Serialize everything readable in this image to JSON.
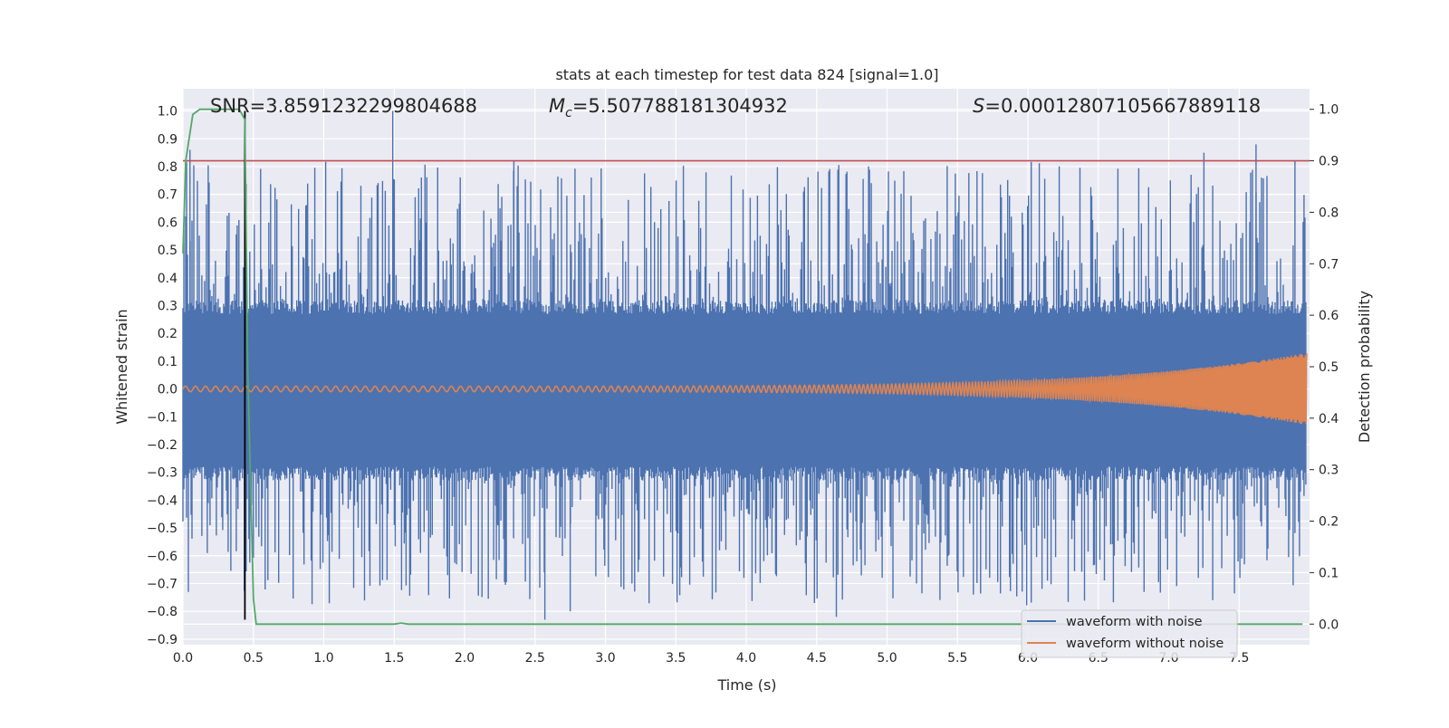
{
  "chart_data": {
    "type": "line",
    "title": "stats at each timestep for test data 824 [signal=1.0]",
    "xlabel": "Time (s)",
    "ylabel": "Whitened strain",
    "y2label": "Detection probability",
    "xlim": [
      0.0,
      8.0
    ],
    "ylim": [
      -0.92,
      1.08
    ],
    "y2lim": [
      -0.04,
      1.04
    ],
    "xticks": [
      "0.0",
      "0.5",
      "1.0",
      "1.5",
      "2.0",
      "2.5",
      "3.0",
      "3.5",
      "4.0",
      "4.5",
      "5.0",
      "5.5",
      "6.0",
      "6.5",
      "7.0",
      "7.5"
    ],
    "yticks": [
      "1.0",
      "0.9",
      "0.8",
      "0.7",
      "0.6",
      "0.5",
      "0.4",
      "0.3",
      "0.2",
      "0.1",
      "0.0",
      "−0.1",
      "−0.2",
      "−0.3",
      "−0.4",
      "−0.5",
      "−0.6",
      "−0.7",
      "−0.8",
      "−0.9"
    ],
    "y2ticks": [
      "1.0",
      "0.9",
      "0.8",
      "0.7",
      "0.6",
      "0.5",
      "0.4",
      "0.3",
      "0.2",
      "0.1",
      "0.0"
    ],
    "grid": true,
    "legend_position": "lower-right",
    "annotations": {
      "snr": "SNR=3.8591232299804688",
      "mc_symbol": "M",
      "mc_sub": "c",
      "mc_value": "=5.507788181304932",
      "s_symbol": "S",
      "s_value": "=0.00012807105667889118"
    },
    "series": [
      {
        "name": "waveform with noise",
        "color": "#4c72b0",
        "kind": "noise band",
        "typical_envelope": [
          -0.28,
          0.27
        ],
        "peak_max": 1.0,
        "peak_min": -0.83
      },
      {
        "name": "waveform without noise",
        "color": "#dd8452",
        "kind": "chirp",
        "amplitude_start": 0.01,
        "amplitude_end": 0.13
      }
    ],
    "detection_probability": {
      "color": "#55a868",
      "x": [
        0.0,
        0.02,
        0.07,
        0.12,
        0.2,
        0.4,
        0.44,
        0.46,
        0.5,
        0.52,
        1.5,
        1.55,
        1.6,
        7.95
      ],
      "y": [
        0.72,
        0.9,
        0.99,
        1.0,
        1.0,
        1.0,
        0.98,
        0.5,
        0.05,
        0.0,
        0.0,
        0.002,
        0.0,
        0.0
      ]
    },
    "threshold": {
      "color": "#c44e52",
      "value": 0.9
    },
    "vertical_marker": {
      "color": "#000000",
      "x": 0.44,
      "y_from": -0.83,
      "y_to": 1.0
    }
  }
}
